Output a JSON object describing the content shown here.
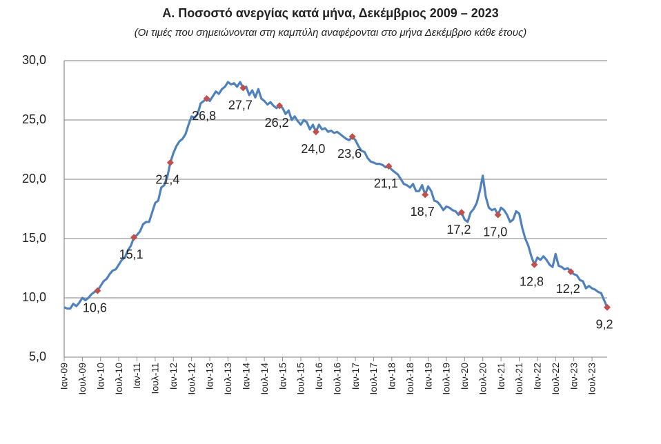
{
  "chart_data": {
    "type": "line",
    "title": "Α. Ποσοστό ανεργίας κατά μήνα, Δεκέμβριος 2009 – 2023",
    "subtitle": "(Οι τιμές που σημειώνονται στη καμπύλη αναφέρονται στο μήνα Δεκέμβριο κάθε έτους)",
    "categories": [
      "Ιαν-09",
      null,
      null,
      null,
      null,
      null,
      "Ιουλ-09",
      null,
      null,
      null,
      null,
      null,
      "Ιαν-10",
      null,
      null,
      null,
      null,
      null,
      "Ιουλ-10",
      null,
      null,
      null,
      null,
      null,
      "Ιαν-11",
      null,
      null,
      null,
      null,
      null,
      "Ιουλ-11",
      null,
      null,
      null,
      null,
      null,
      "Ιαν-12",
      null,
      null,
      null,
      null,
      null,
      "Ιουλ-12",
      null,
      null,
      null,
      null,
      null,
      "Ιαν-13",
      null,
      null,
      null,
      null,
      null,
      "Ιουλ-13",
      null,
      null,
      null,
      null,
      null,
      "Ιαν-14",
      null,
      null,
      null,
      null,
      null,
      "Ιουλ-14",
      null,
      null,
      null,
      null,
      null,
      "Ιαν-15",
      null,
      null,
      null,
      null,
      null,
      "Ιουλ-15",
      null,
      null,
      null,
      null,
      null,
      "Ιαν-16",
      null,
      null,
      null,
      null,
      null,
      "Ιουλ-16",
      null,
      null,
      null,
      null,
      null,
      "Ιαν-17",
      null,
      null,
      null,
      null,
      null,
      "Ιουλ-17",
      null,
      null,
      null,
      null,
      null,
      "Ιαν-18",
      null,
      null,
      null,
      null,
      null,
      "Ιουλ-18",
      null,
      null,
      null,
      null,
      null,
      "Ιαν-19",
      null,
      null,
      null,
      null,
      null,
      "Ιουλ-19",
      null,
      null,
      null,
      null,
      null,
      "Ιαν-20",
      null,
      null,
      null,
      null,
      null,
      "Ιουλ-20",
      null,
      null,
      null,
      null,
      null,
      "Ιαν-21",
      null,
      null,
      null,
      null,
      null,
      "Ιουλ-21",
      null,
      null,
      null,
      null,
      null,
      "Ιαν-22",
      null,
      null,
      null,
      null,
      null,
      "Ιουλ-22",
      null,
      null,
      null,
      null,
      null,
      "Ιαν-23",
      null,
      null,
      null,
      null,
      null,
      "Ιουλ-23",
      null,
      null,
      null,
      null,
      null
    ],
    "series": [
      {
        "color": "#4f81bd",
        "style": "line",
        "values": [
          9.2,
          9.1,
          9.1,
          9.5,
          9.3,
          9.6,
          10.0,
          9.8,
          10.0,
          10.3,
          10.5,
          10.6,
          11.0,
          11.4,
          11.6,
          12.0,
          12.3,
          12.4,
          12.8,
          13.2,
          13.4,
          14.0,
          14.4,
          15.1,
          15.3,
          15.6,
          16.2,
          16.4,
          16.4,
          17.2,
          18.0,
          18.2,
          19.3,
          19.5,
          20.2,
          21.4,
          22.2,
          22.8,
          23.2,
          23.4,
          23.8,
          24.6,
          25.3,
          25.2,
          25.5,
          26.4,
          26.6,
          26.8,
          26.6,
          27.0,
          27.4,
          27.2,
          27.6,
          27.8,
          28.2,
          28.0,
          28.1,
          27.8,
          28.2,
          27.7,
          27.8,
          27.1,
          27.5,
          26.9,
          27.6,
          26.8,
          26.6,
          26.3,
          26.5,
          26.2,
          26.0,
          26.2,
          26.0,
          25.5,
          25.8,
          25.0,
          25.3,
          24.9,
          24.6,
          25.0,
          24.8,
          24.2,
          24.6,
          24.0,
          24.6,
          24.2,
          24.3,
          24.0,
          24.1,
          23.9,
          24.0,
          23.8,
          23.6,
          23.4,
          23.3,
          23.6,
          23.3,
          22.8,
          22.4,
          22.3,
          21.8,
          21.5,
          21.4,
          21.3,
          21.3,
          21.2,
          21.0,
          21.1,
          20.8,
          20.6,
          20.4,
          20.0,
          19.6,
          19.5,
          19.3,
          19.6,
          19.0,
          19.0,
          19.5,
          18.7,
          19.4,
          19.0,
          18.2,
          18.1,
          17.8,
          17.4,
          17.7,
          17.6,
          17.4,
          17.3,
          17.0,
          17.2,
          16.6,
          16.4,
          17.2,
          17.5,
          18.0,
          19.0,
          20.3,
          18.5,
          17.6,
          17.4,
          17.5,
          17.0,
          17.6,
          17.4,
          17.0,
          16.4,
          16.6,
          17.3,
          17.1,
          15.9,
          15.0,
          14.4,
          13.5,
          12.8,
          13.4,
          13.2,
          13.5,
          13.2,
          12.8,
          12.6,
          13.7,
          12.7,
          12.6,
          12.4,
          12.5,
          12.2,
          12.0,
          11.9,
          11.5,
          11.4,
          10.8,
          11.0,
          10.8,
          10.7,
          10.5,
          10.4,
          9.8,
          9.2
        ]
      },
      {
        "color": "#c0504d",
        "style": "markers",
        "values": [
          null,
          null,
          null,
          null,
          null,
          null,
          null,
          null,
          null,
          null,
          null,
          10.6,
          null,
          null,
          null,
          null,
          null,
          null,
          null,
          null,
          null,
          null,
          null,
          15.1,
          null,
          null,
          null,
          null,
          null,
          null,
          null,
          null,
          null,
          null,
          null,
          21.4,
          null,
          null,
          null,
          null,
          null,
          null,
          null,
          null,
          null,
          null,
          null,
          26.8,
          null,
          null,
          null,
          null,
          null,
          null,
          null,
          null,
          null,
          null,
          null,
          27.7,
          null,
          null,
          null,
          null,
          null,
          null,
          null,
          null,
          null,
          null,
          null,
          26.2,
          null,
          null,
          null,
          null,
          null,
          null,
          null,
          null,
          null,
          null,
          null,
          24.0,
          null,
          null,
          null,
          null,
          null,
          null,
          null,
          null,
          null,
          null,
          null,
          23.6,
          null,
          null,
          null,
          null,
          null,
          null,
          null,
          null,
          null,
          null,
          null,
          21.1,
          null,
          null,
          null,
          null,
          null,
          null,
          null,
          null,
          null,
          null,
          null,
          18.7,
          null,
          null,
          null,
          null,
          null,
          null,
          null,
          null,
          null,
          null,
          null,
          17.2,
          null,
          null,
          null,
          null,
          null,
          null,
          null,
          null,
          null,
          null,
          null,
          17.0,
          null,
          null,
          null,
          null,
          null,
          null,
          null,
          null,
          null,
          null,
          null,
          12.8,
          null,
          null,
          null,
          null,
          null,
          null,
          null,
          null,
          null,
          null,
          null,
          12.2,
          null,
          null,
          null,
          null,
          null,
          null,
          null,
          null,
          null,
          null,
          null,
          9.2
        ],
        "value_labels": [
          null,
          null,
          null,
          null,
          null,
          null,
          null,
          null,
          null,
          null,
          null,
          "10,6",
          null,
          null,
          null,
          null,
          null,
          null,
          null,
          null,
          null,
          null,
          null,
          "15,1",
          null,
          null,
          null,
          null,
          null,
          null,
          null,
          null,
          null,
          null,
          null,
          "21,4",
          null,
          null,
          null,
          null,
          null,
          null,
          null,
          null,
          null,
          null,
          null,
          "26,8",
          null,
          null,
          null,
          null,
          null,
          null,
          null,
          null,
          null,
          null,
          null,
          "27,7",
          null,
          null,
          null,
          null,
          null,
          null,
          null,
          null,
          null,
          null,
          null,
          "26,2",
          null,
          null,
          null,
          null,
          null,
          null,
          null,
          null,
          null,
          null,
          null,
          "24,0",
          null,
          null,
          null,
          null,
          null,
          null,
          null,
          null,
          null,
          null,
          null,
          "23,6",
          null,
          null,
          null,
          null,
          null,
          null,
          null,
          null,
          null,
          null,
          null,
          "21,1",
          null,
          null,
          null,
          null,
          null,
          null,
          null,
          null,
          null,
          null,
          null,
          "18,7",
          null,
          null,
          null,
          null,
          null,
          null,
          null,
          null,
          null,
          null,
          null,
          "17,2",
          null,
          null,
          null,
          null,
          null,
          null,
          null,
          null,
          null,
          null,
          null,
          "17,0",
          null,
          null,
          null,
          null,
          null,
          null,
          null,
          null,
          null,
          null,
          null,
          "12,8",
          null,
          null,
          null,
          null,
          null,
          null,
          null,
          null,
          null,
          null,
          null,
          "12,2",
          null,
          null,
          null,
          null,
          null,
          null,
          null,
          null,
          null,
          null,
          null,
          "9,2"
        ]
      }
    ],
    "ylim": [
      5,
      30
    ],
    "yticks": [
      {
        "value": 5,
        "label": "5,0"
      },
      {
        "value": 10,
        "label": "10,0"
      },
      {
        "value": 15,
        "label": "15,0"
      },
      {
        "value": 20,
        "label": "20,0"
      },
      {
        "value": 25,
        "label": "25,0"
      },
      {
        "value": 30,
        "label": "30,0"
      }
    ],
    "grid": true
  }
}
